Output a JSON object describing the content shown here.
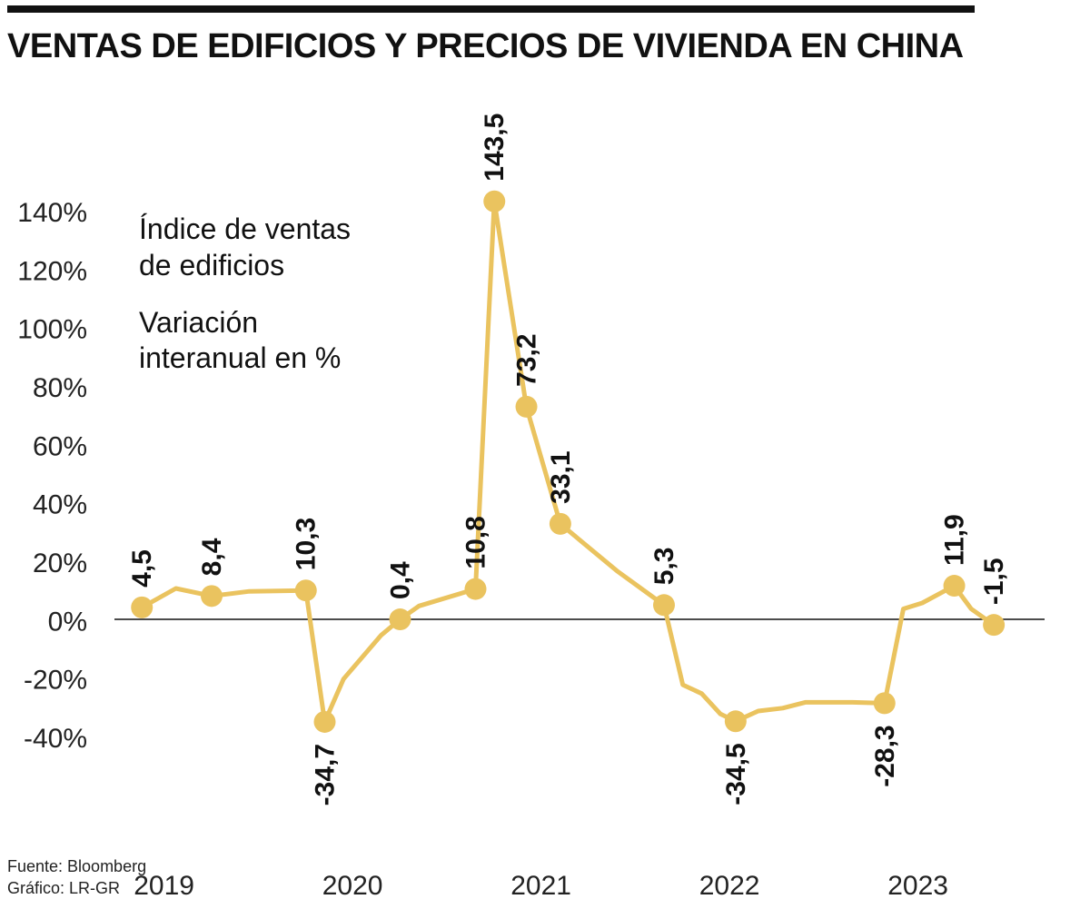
{
  "title": "VENTAS DE EDIFICIOS Y PRECIOS DE VIVIENDA EN CHINA",
  "legend": {
    "series_line1": "Índice de ventas",
    "series_line2": "de edificios",
    "unit_line1": "Variación",
    "unit_line2": "interanual en %"
  },
  "source": {
    "line1": "Fuente: Bloomberg",
    "line2": "Gráfico: LR-GR"
  },
  "colors": {
    "series": "#eac35f",
    "axis": "#111111",
    "text": "#111111"
  },
  "chart_data": {
    "type": "line",
    "title": "VENTAS DE EDIFICIOS Y PRECIOS DE VIVIENDA EN CHINA",
    "ylabel": "Variación interanual en %",
    "ylim": [
      -40,
      140
    ],
    "yticks": [
      140,
      120,
      100,
      80,
      60,
      40,
      20,
      0,
      -20,
      -40
    ],
    "ytick_labels": [
      "140%",
      "120%",
      "100%",
      "80%",
      "60%",
      "40%",
      "20%",
      "0%",
      "-20%",
      "-40%"
    ],
    "xlim": [
      2018.65,
      2023.45
    ],
    "xticks": [
      2019,
      2020,
      2021,
      2022,
      2023
    ],
    "xtick_labels": [
      "2019",
      "2020",
      "2021",
      "2022",
      "2023"
    ],
    "grid": false,
    "series": [
      {
        "values": [
          {
            "x": 2018.68,
            "y": 4.5
          },
          {
            "x": 2018.86,
            "y": 11
          },
          {
            "x": 2019.05,
            "y": 8.4
          },
          {
            "x": 2019.25,
            "y": 10
          },
          {
            "x": 2019.55,
            "y": 10.3
          },
          {
            "x": 2019.65,
            "y": -34.7
          },
          {
            "x": 2019.75,
            "y": -20
          },
          {
            "x": 2019.95,
            "y": -5
          },
          {
            "x": 2020.05,
            "y": 0.4
          },
          {
            "x": 2020.15,
            "y": 5
          },
          {
            "x": 2020.45,
            "y": 10.8
          },
          {
            "x": 2020.55,
            "y": 143.5
          },
          {
            "x": 2020.72,
            "y": 73.2
          },
          {
            "x": 2020.9,
            "y": 33.1
          },
          {
            "x": 2021.2,
            "y": 17
          },
          {
            "x": 2021.45,
            "y": 5.3
          },
          {
            "x": 2021.55,
            "y": -22
          },
          {
            "x": 2021.65,
            "y": -25
          },
          {
            "x": 2021.75,
            "y": -32
          },
          {
            "x": 2021.83,
            "y": -34.5
          },
          {
            "x": 2021.95,
            "y": -31
          },
          {
            "x": 2022.08,
            "y": -30
          },
          {
            "x": 2022.2,
            "y": -28
          },
          {
            "x": 2022.45,
            "y": -28
          },
          {
            "x": 2022.62,
            "y": -28.3
          },
          {
            "x": 2022.72,
            "y": 4
          },
          {
            "x": 2022.82,
            "y": 6
          },
          {
            "x": 2022.99,
            "y": 11.9
          },
          {
            "x": 2023.08,
            "y": 4
          },
          {
            "x": 2023.2,
            "y": -1.5
          }
        ],
        "labeled_points": [
          {
            "x": 2018.68,
            "y": 4.5,
            "label": "4,5",
            "pos": "above"
          },
          {
            "x": 2019.05,
            "y": 8.4,
            "label": "8,4",
            "pos": "above"
          },
          {
            "x": 2019.55,
            "y": 10.3,
            "label": "10,3",
            "pos": "above"
          },
          {
            "x": 2019.65,
            "y": -34.7,
            "label": "-34,7",
            "pos": "below"
          },
          {
            "x": 2020.05,
            "y": 0.4,
            "label": "0,4",
            "pos": "above"
          },
          {
            "x": 2020.45,
            "y": 10.8,
            "label": "10,8",
            "pos": "above"
          },
          {
            "x": 2020.55,
            "y": 143.5,
            "label": "143,5",
            "pos": "above"
          },
          {
            "x": 2020.72,
            "y": 73.2,
            "label": "73,2",
            "pos": "above"
          },
          {
            "x": 2020.9,
            "y": 33.1,
            "label": "33,1",
            "pos": "above"
          },
          {
            "x": 2021.45,
            "y": 5.3,
            "label": "5,3",
            "pos": "above"
          },
          {
            "x": 2021.83,
            "y": -34.5,
            "label": "-34,5",
            "pos": "below"
          },
          {
            "x": 2022.62,
            "y": -28.3,
            "label": "-28,3",
            "pos": "below"
          },
          {
            "x": 2022.99,
            "y": 11.9,
            "label": "11,9",
            "pos": "above"
          },
          {
            "x": 2023.2,
            "y": -1.5,
            "label": "-1,5",
            "pos": "above"
          }
        ]
      }
    ]
  }
}
